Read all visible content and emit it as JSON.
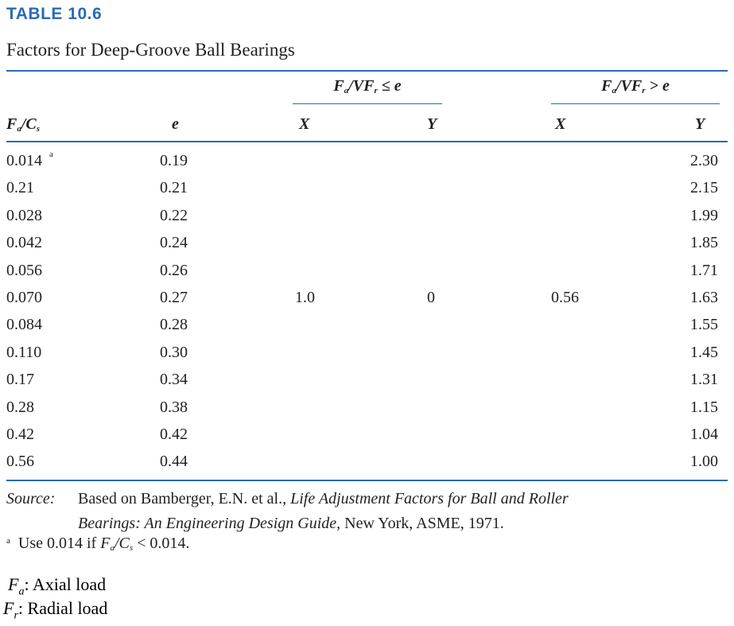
{
  "table": {
    "number": "TABLE 10.6",
    "title": "Factors for Deep-Groove Ball Bearings",
    "headers": {
      "group1": "≤ e",
      "group2": "> e",
      "col_e": "e",
      "col_x1": "X",
      "col_y1": "Y",
      "col_x2": "X",
      "col_y2": "Y"
    },
    "rows": [
      {
        "fa_cs": "0.014",
        "note": "a",
        "e": "0.19",
        "y2": "2.30"
      },
      {
        "fa_cs": "0.21",
        "e": "0.21",
        "y2": "2.15"
      },
      {
        "fa_cs": "0.028",
        "e": "0.22",
        "y2": "1.99"
      },
      {
        "fa_cs": "0.042",
        "e": "0.24",
        "y2": "1.85"
      },
      {
        "fa_cs": "0.056",
        "e": "0.26",
        "y2": "1.71"
      },
      {
        "fa_cs": "0.070",
        "e": "0.27",
        "y2": "1.63"
      },
      {
        "fa_cs": "0.084",
        "e": "0.28",
        "y2": "1.55"
      },
      {
        "fa_cs": "0.110",
        "e": "0.30",
        "y2": "1.45"
      },
      {
        "fa_cs": "0.17",
        "e": "0.34",
        "y2": "1.31"
      },
      {
        "fa_cs": "0.28",
        "e": "0.38",
        "y2": "1.15"
      },
      {
        "fa_cs": "0.42",
        "e": "0.42",
        "y2": "1.04"
      },
      {
        "fa_cs": "0.56",
        "e": "0.44",
        "y2": "1.00"
      }
    ],
    "merged": {
      "x1": "1.0",
      "y1": "0",
      "x2": "0.56"
    },
    "source_label": "Source:",
    "source_line1_a": "Based on Bamberger, E.N. et al., ",
    "source_line1_b": "Life Adjustment Factors for Ball and Roller",
    "source_line2_a": "Bearings: An Engineering Design Guide",
    "source_line2_b": ", New York, ASME, 1971.",
    "footnote_mark": "a",
    "footnote_text_a": "Use 0.014 if ",
    "footnote_text_b": " < 0.014."
  },
  "legend": {
    "fa_desc": ": Axial load",
    "fr_desc": ": Radial load"
  },
  "colors": {
    "accent": "#2a6bb3",
    "text": "#231f20"
  }
}
